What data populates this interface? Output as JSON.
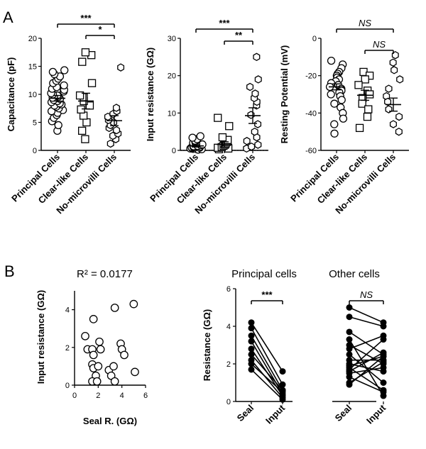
{
  "panel_labels": [
    "A",
    "B"
  ],
  "chart_data": [
    {
      "type": "scatter",
      "ylabel": "Capacitance (pF)",
      "ylim": [
        0,
        20
      ],
      "yticks": [
        0,
        5,
        10,
        15,
        20
      ],
      "categories": [
        "Principal Cells",
        "Clear-like Cells",
        "No-microvilli Cells"
      ],
      "markers": [
        "circle",
        "square",
        "hexagon"
      ],
      "series": [
        {
          "values": [
            3.5,
            4.5,
            5.2,
            5.8,
            6.3,
            6.7,
            7,
            7.2,
            7.5,
            7.8,
            8,
            8.2,
            8.4,
            8.6,
            8.8,
            9,
            9.2,
            9.4,
            9.6,
            9.8,
            10,
            10.2,
            10.5,
            10.8,
            11,
            11.3,
            11.6,
            12,
            12.4,
            12.8,
            13.2,
            13.6,
            14,
            14.3
          ]
        },
        {
          "values": [
            2,
            3.5,
            5,
            6.2,
            7.3,
            8,
            8.8,
            9.5,
            9.8,
            12,
            15.8,
            17,
            17.5
          ]
        },
        {
          "values": [
            1.2,
            2,
            2.6,
            3,
            3.6,
            4,
            4.5,
            5,
            5.4,
            6,
            6.5,
            7,
            7.6,
            14.8
          ]
        }
      ],
      "mean": [
        9.3,
        8.8,
        5.3
      ],
      "sem": [
        0.5,
        1.4,
        0.9
      ],
      "significance": [
        {
          "from": 0,
          "to": 2,
          "label": "***"
        },
        {
          "from": 1,
          "to": 2,
          "label": "*"
        }
      ]
    },
    {
      "type": "scatter",
      "ylabel": "Input resistance (GΩ)",
      "ylim": [
        0,
        30
      ],
      "yticks": [
        0,
        10,
        20,
        30
      ],
      "dotted_reference_y": 0,
      "categories": [
        "Principal Cells",
        "Clear-like Cells",
        "No-microvilli Cells"
      ],
      "markers": [
        "circle",
        "square",
        "hexagon"
      ],
      "series": [
        {
          "values": [
            0.2,
            0.3,
            0.4,
            0.5,
            0.6,
            0.7,
            0.8,
            0.9,
            1,
            1.1,
            1.2,
            1.4,
            1.6,
            1.8,
            2,
            2.3,
            2.6,
            3,
            3.4,
            3.8
          ]
        },
        {
          "values": [
            0.3,
            0.5,
            0.7,
            0.9,
            1.2,
            1.5,
            1.8,
            2.2,
            2.8,
            3.5,
            6.5,
            8.7
          ]
        },
        {
          "values": [
            0.5,
            1,
            1.5,
            2.5,
            3.5,
            5,
            7,
            9.5,
            12,
            13,
            14,
            15.2,
            17,
            19,
            25
          ]
        }
      ],
      "mean": [
        1.2,
        1.6,
        9.3
      ],
      "sem": [
        0.3,
        0.7,
        2.1
      ],
      "significance": [
        {
          "from": 0,
          "to": 2,
          "label": "***"
        },
        {
          "from": 1,
          "to": 2,
          "label": "**"
        }
      ]
    },
    {
      "type": "scatter",
      "ylabel": "Resting Potential (mV)",
      "ylim": [
        -60,
        0
      ],
      "yticks": [
        -60,
        -40,
        -20,
        0
      ],
      "categories": [
        "Principal Cells",
        "Clear-like Cells",
        "No-microvilli Cells"
      ],
      "markers": [
        "circle",
        "square",
        "hexagon"
      ],
      "series": [
        {
          "values": [
            -12,
            -14,
            -16,
            -18,
            -19,
            -20,
            -21,
            -22,
            -23,
            -24,
            -25,
            -26,
            -27,
            -28,
            -29,
            -30,
            -31,
            -33,
            -35,
            -37,
            -40,
            -43,
            -46,
            -51
          ]
        },
        {
          "values": [
            -18,
            -20,
            -22,
            -25,
            -28,
            -30,
            -32,
            -35,
            -38,
            -42,
            -48
          ]
        },
        {
          "values": [
            -9,
            -13,
            -17,
            -22,
            -27,
            -31,
            -34,
            -38,
            -42,
            -46,
            -50
          ]
        }
      ],
      "mean": [
        -26,
        -30.5,
        -35.5
      ],
      "sem": [
        1.6,
        2.7,
        3.5
      ],
      "significance": [
        {
          "from": 0,
          "to": 2,
          "label": "NS"
        },
        {
          "from": 1,
          "to": 2,
          "label": "NS"
        }
      ]
    },
    {
      "type": "scatter",
      "title": "R² = 0.0177",
      "xlabel": "Seal R. (GΩ)",
      "ylabel": "Input resistance (GΩ)",
      "xlim": [
        0,
        6
      ],
      "ylim": [
        0,
        5
      ],
      "xticks": [
        0,
        2,
        4,
        6
      ],
      "yticks": [
        0,
        2,
        4
      ],
      "points": [
        {
          "x": 0.9,
          "y": 2.6
        },
        {
          "x": 1.1,
          "y": 1.9
        },
        {
          "x": 1.6,
          "y": 3.5
        },
        {
          "x": 1.5,
          "y": 1.9
        },
        {
          "x": 1.6,
          "y": 1.6
        },
        {
          "x": 1.5,
          "y": 1.1
        },
        {
          "x": 1.6,
          "y": 0.9
        },
        {
          "x": 1.8,
          "y": 0.5
        },
        {
          "x": 1.5,
          "y": 0.2
        },
        {
          "x": 2.0,
          "y": 1.0
        },
        {
          "x": 1.9,
          "y": 0.2
        },
        {
          "x": 2.1,
          "y": 2.3
        },
        {
          "x": 2.2,
          "y": 1.9
        },
        {
          "x": 2.9,
          "y": 0.8
        },
        {
          "x": 3.1,
          "y": 0.5
        },
        {
          "x": 3.3,
          "y": 1.0
        },
        {
          "x": 3.4,
          "y": 0.2
        },
        {
          "x": 3.4,
          "y": 4.1
        },
        {
          "x": 3.9,
          "y": 2.2
        },
        {
          "x": 4.0,
          "y": 1.9
        },
        {
          "x": 4.2,
          "y": 1.6
        },
        {
          "x": 5.0,
          "y": 4.3
        },
        {
          "x": 5.1,
          "y": 0.7
        }
      ]
    },
    {
      "type": "line",
      "title": "Principal cells",
      "ylabel": "Resistance (GΩ)",
      "ylim": [
        0,
        6
      ],
      "yticks": [
        0,
        2,
        4,
        6
      ],
      "categories": [
        "Seal",
        "Input"
      ],
      "pairs": [
        [
          4.2,
          1.6
        ],
        [
          3.9,
          0.9
        ],
        [
          3.5,
          0.6
        ],
        [
          3.2,
          0.4
        ],
        [
          2.8,
          0.3
        ],
        [
          2.5,
          0.6
        ],
        [
          2.2,
          0.2
        ],
        [
          2.0,
          0.5
        ],
        [
          1.7,
          0.1
        ]
      ],
      "significance": {
        "label": "***"
      }
    },
    {
      "type": "line",
      "title": "Other cells",
      "ylim": [
        0,
        6
      ],
      "categories": [
        "Seal",
        "Input"
      ],
      "pairs": [
        [
          5.0,
          4.2
        ],
        [
          4.5,
          4.0
        ],
        [
          3.7,
          2.5
        ],
        [
          3.3,
          0.3
        ],
        [
          3.0,
          2.0
        ],
        [
          2.8,
          3.5
        ],
        [
          2.5,
          1.0
        ],
        [
          2.2,
          2.2
        ],
        [
          2.0,
          1.6
        ],
        [
          1.9,
          2.4
        ],
        [
          1.8,
          0.6
        ],
        [
          1.7,
          3.3
        ],
        [
          1.6,
          2.6
        ],
        [
          1.5,
          1.8
        ],
        [
          1.3,
          0.5
        ],
        [
          1.0,
          2.1
        ],
        [
          0.9,
          2.4
        ]
      ],
      "significance": {
        "label": "NS"
      }
    }
  ]
}
